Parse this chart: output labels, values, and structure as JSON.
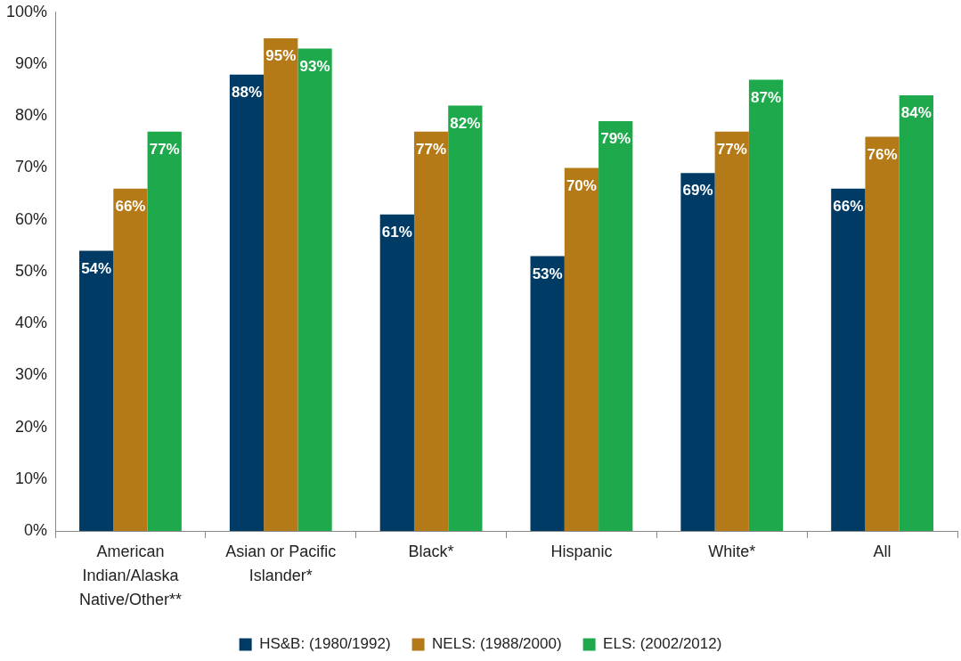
{
  "chart_data": {
    "type": "bar",
    "categories": [
      "American Indian/Alaska Native/Other**",
      "Asian or Pacific Islander*",
      "Black*",
      "Hispanic",
      "White*",
      "All"
    ],
    "series": [
      {
        "name": "HS&B: (1980/1992)",
        "color": "#003b65",
        "values": [
          54,
          88,
          61,
          53,
          69,
          66
        ],
        "value_labels": [
          "54%",
          "88%",
          "61%",
          "53%",
          "69%",
          "66%"
        ]
      },
      {
        "name": "NELS: (1988/2000)",
        "color": "#b47a17",
        "values": [
          66,
          95,
          77,
          70,
          77,
          76
        ],
        "value_labels": [
          "66%",
          "95%",
          "77%",
          "70%",
          "77%",
          "76%"
        ]
      },
      {
        "name": "ELS: (2002/2012)",
        "color": "#1eaa4c",
        "values": [
          77,
          93,
          82,
          79,
          87,
          84
        ],
        "value_labels": [
          "77%",
          "93%",
          "82%",
          "79%",
          "87%",
          "84%"
        ]
      }
    ],
    "ylim": [
      0,
      100
    ],
    "yticks": [
      {
        "value": 0,
        "label": "0%"
      },
      {
        "value": 10,
        "label": "10%"
      },
      {
        "value": 20,
        "label": "20%"
      },
      {
        "value": 30,
        "label": "30%"
      },
      {
        "value": 40,
        "label": "40%"
      },
      {
        "value": 50,
        "label": "50%"
      },
      {
        "value": 60,
        "label": "60%"
      },
      {
        "value": 70,
        "label": "70%"
      },
      {
        "value": 80,
        "label": "80%"
      },
      {
        "value": 90,
        "label": "90%"
      },
      {
        "value": 100,
        "label": "100%"
      }
    ],
    "grid": false,
    "legend": "bottom"
  }
}
